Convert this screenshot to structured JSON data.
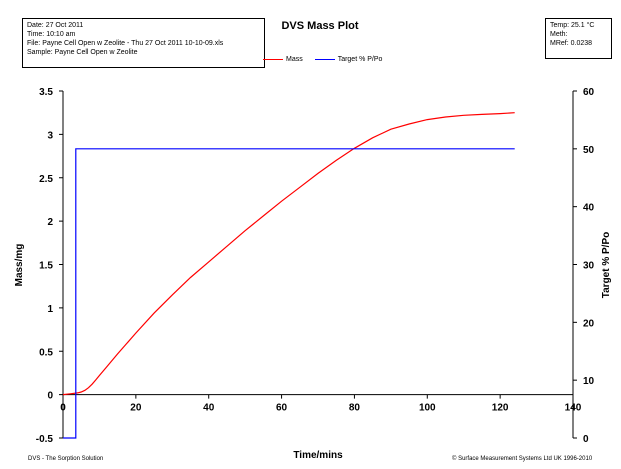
{
  "info": {
    "date_label": "Date:",
    "date_value": "27 Oct 2011",
    "time_label": "Time:",
    "time_value": "10:10 am",
    "file_label": "File:",
    "file_value": "Payne Cell  Open w Zeolite - Thu 27 Oct 2011 10-10-09.xls",
    "sample_label": "Sample:",
    "sample_value": "Payne Cell  Open w Zeolite"
  },
  "meta": {
    "temp_label": "Temp:",
    "temp_value": "25.1 °C",
    "meth_label": "Meth:",
    "meth_value": "",
    "mref_label": "MRef:",
    "mref_value": "0.0238"
  },
  "footer": {
    "left": "DVS - The Sorption Solution",
    "right": "© Surface Measurement Systems Ltd UK 1996-2010"
  },
  "chart_data": {
    "type": "line",
    "title": "DVS Mass Plot",
    "xlabel": "Time/mins",
    "ylabel": "Mass/mg",
    "y2label": "Target % P/Po",
    "xlim": [
      0,
      140
    ],
    "ylim": [
      -0.5,
      3.5
    ],
    "y2lim": [
      0,
      60
    ],
    "xticks": [
      "0",
      "20",
      "40",
      "60",
      "80",
      "100",
      "120",
      "140"
    ],
    "yticks": [
      "-0.5",
      "0",
      "0.5",
      "1",
      "1.5",
      "2",
      "2.5",
      "3",
      "3.5"
    ],
    "y2ticks": [
      "0",
      "10",
      "20",
      "30",
      "40",
      "50",
      "60"
    ],
    "grid": false,
    "legend_position": "top-center",
    "series": [
      {
        "name": "Mass",
        "axis": "left",
        "color": "#ff0000",
        "x": [
          0,
          2,
          4,
          5,
          6,
          7,
          8,
          9,
          10,
          12,
          15,
          20,
          25,
          30,
          35,
          40,
          45,
          50,
          55,
          60,
          65,
          70,
          75,
          80,
          85,
          90,
          95,
          100,
          105,
          110,
          115,
          120,
          124
        ],
        "y": [
          0.0,
          0.01,
          0.02,
          0.03,
          0.05,
          0.08,
          0.12,
          0.17,
          0.22,
          0.32,
          0.47,
          0.71,
          0.94,
          1.15,
          1.35,
          1.53,
          1.71,
          1.89,
          2.06,
          2.23,
          2.39,
          2.55,
          2.7,
          2.84,
          2.96,
          3.06,
          3.12,
          3.17,
          3.2,
          3.22,
          3.23,
          3.24,
          3.25
        ]
      },
      {
        "name": "Target % P/Po",
        "axis": "right",
        "color": "#0000ff",
        "x": [
          0,
          3.5,
          3.5,
          124
        ],
        "y": [
          0,
          0,
          50,
          50
        ]
      }
    ]
  }
}
